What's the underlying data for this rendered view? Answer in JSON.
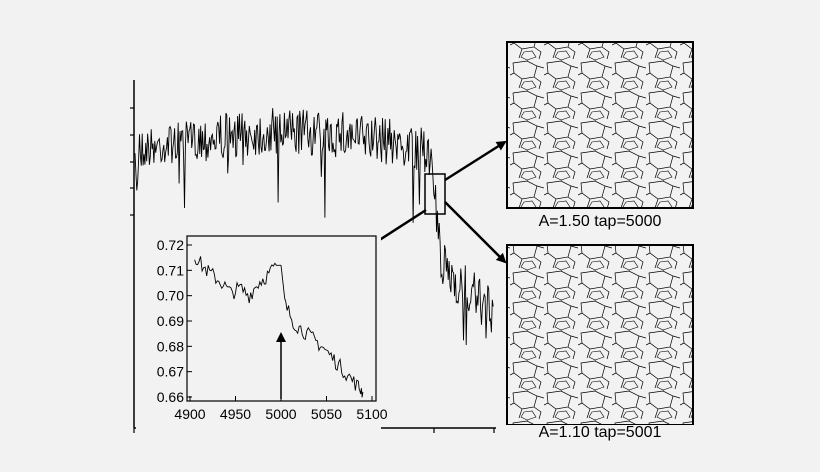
{
  "chart_data": [
    {
      "type": "line",
      "role": "main",
      "title": "",
      "xlabel": "",
      "ylabel": "",
      "axis_ticks_labeled": false,
      "series": [
        {
          "segments": [
            {
              "x_range": [
                0,
                6
              ],
              "level_description": "plateau",
              "noise": "high"
            },
            {
              "x_range": [
                6,
                6.5
              ],
              "level_description": "drop"
            },
            {
              "x_range": [
                6.5,
                7
              ],
              "level_description": "lower plateau",
              "noise": "high"
            }
          ]
        }
      ],
      "grid": false
    },
    {
      "type": "line",
      "role": "inset",
      "xlabel": "",
      "ylabel": "",
      "xlim": [
        4900,
        5100
      ],
      "ylim": [
        0.66,
        0.72
      ],
      "xticks": [
        "4900",
        "4950",
        "5000",
        "5050",
        "5100"
      ],
      "yticks": [
        "0.72",
        "0.71",
        "0.70",
        "0.69",
        "0.68",
        "0.67",
        "0.66"
      ],
      "series": [
        {
          "x": [
            4905,
            4915,
            4925,
            4935,
            4945,
            4955,
            4965,
            4975,
            4985,
            4995,
            5000,
            5005,
            5015,
            5025,
            5035,
            5045,
            5055,
            5065,
            5075,
            5085,
            5090
          ],
          "y": [
            0.716,
            0.711,
            0.708,
            0.705,
            0.701,
            0.703,
            0.7,
            0.705,
            0.708,
            0.712,
            0.712,
            0.696,
            0.689,
            0.686,
            0.683,
            0.68,
            0.676,
            0.672,
            0.668,
            0.664,
            0.662
          ]
        }
      ],
      "annotations": [
        {
          "type": "arrow",
          "x": 5000,
          "points": "up"
        }
      ],
      "grid": false
    }
  ],
  "panels": {
    "top_caption": "A=1.50  tap=5000",
    "bottom_caption": "A=1.10  tap=5001"
  }
}
